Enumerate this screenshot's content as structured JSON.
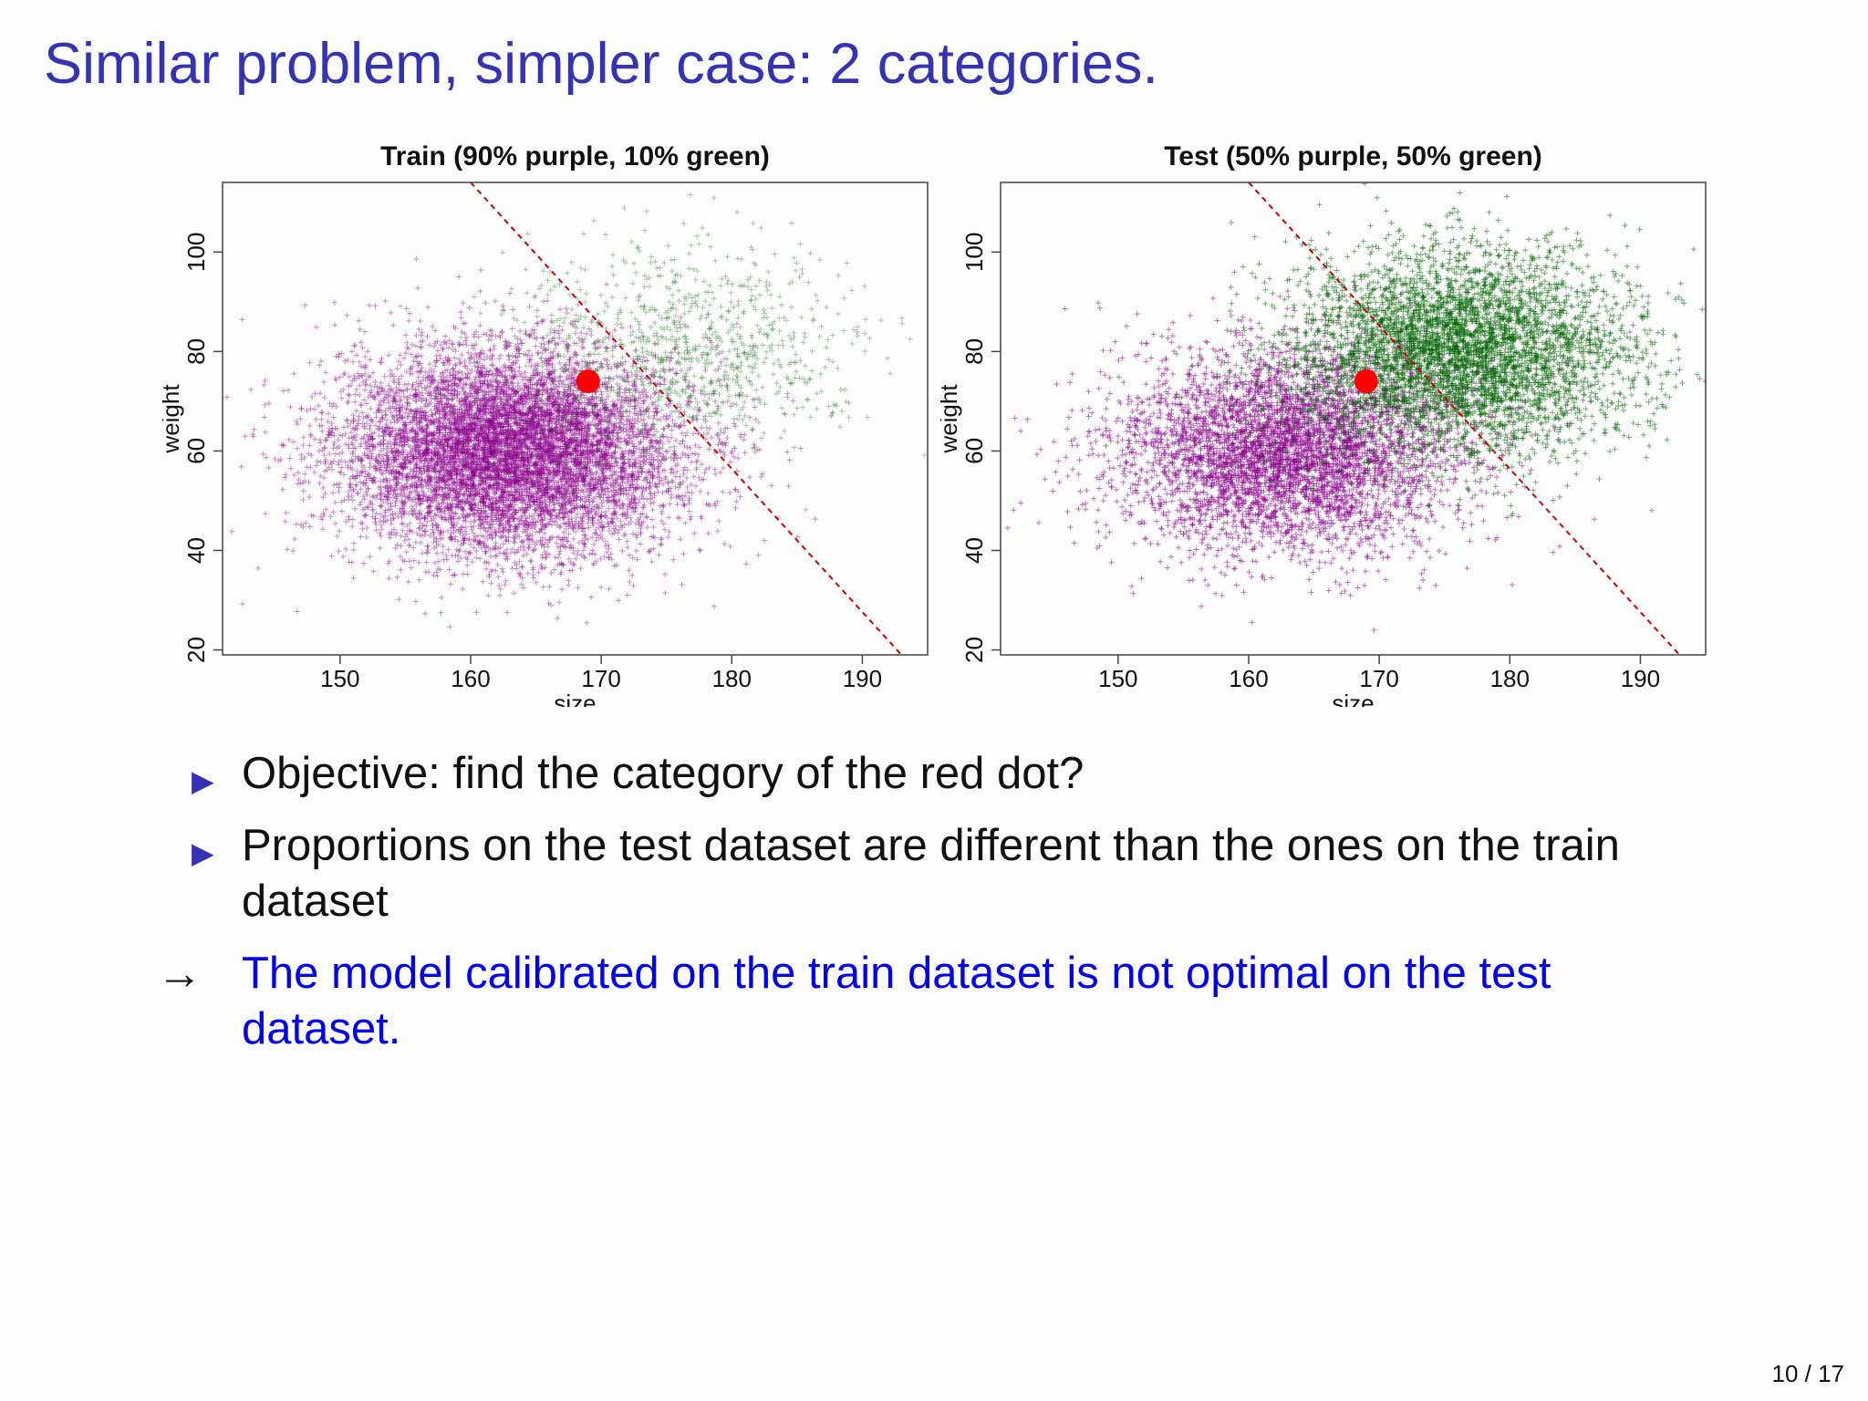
{
  "slide": {
    "title": "Similar problem, simpler case: 2 categories.",
    "page_number": "10 / 17"
  },
  "colors": {
    "title": "#3333b3",
    "purple": "#8b008b",
    "green": "#006400",
    "red_dot": "#ff0000",
    "boundary": "#cc0000",
    "conclusion": "#0000ee"
  },
  "bullets": [
    {
      "marker": "triangle-right-icon",
      "text": "Objective: find the category of the red dot?"
    },
    {
      "marker": "triangle-right-icon",
      "text": "Proportions on the test dataset are different than the ones on the train dataset"
    }
  ],
  "conclusion": {
    "marker": "right-arrow-icon",
    "text": "The model calibrated on the train dataset is not optimal on the test dataset."
  },
  "chart_data": [
    {
      "type": "scatter",
      "title": "Train (90% purple, 10% green)",
      "xlabel": "size",
      "ylabel": "weight",
      "xlim": [
        141,
        195
      ],
      "ylim": [
        19,
        114
      ],
      "xticks": [
        150,
        160,
        170,
        180,
        190
      ],
      "yticks": [
        20,
        40,
        60,
        80,
        100
      ],
      "grid": false,
      "series": [
        {
          "color": "purple",
          "marker": "+",
          "count": 9000,
          "mean": [
            163,
            60
          ],
          "sd": [
            6.5,
            10
          ]
        },
        {
          "color": "green",
          "marker": "+",
          "count": 1000,
          "mean": [
            176,
            80
          ],
          "sd": [
            6.5,
            10
          ]
        }
      ],
      "decision_boundary": {
        "style": "dashed",
        "color": "red",
        "x": [
          160,
          193
        ],
        "y": [
          114,
          19
        ]
      },
      "highlight_point": {
        "color": "red",
        "x": 169,
        "y": 74
      }
    },
    {
      "type": "scatter",
      "title": "Test (50% purple, 50% green)",
      "xlabel": "size",
      "ylabel": "weight",
      "xlim": [
        141,
        195
      ],
      "ylim": [
        19,
        114
      ],
      "xticks": [
        150,
        160,
        170,
        180,
        190
      ],
      "yticks": [
        20,
        40,
        60,
        80,
        100
      ],
      "grid": false,
      "series": [
        {
          "color": "purple",
          "marker": "+",
          "count": 5000,
          "mean": [
            163,
            60
          ],
          "sd": [
            6.5,
            10
          ]
        },
        {
          "color": "green",
          "marker": "+",
          "count": 5000,
          "mean": [
            176,
            80
          ],
          "sd": [
            6.5,
            10
          ]
        }
      ],
      "decision_boundary": {
        "style": "dashed",
        "color": "red",
        "x": [
          160,
          193
        ],
        "y": [
          114,
          19
        ]
      },
      "highlight_point": {
        "color": "red",
        "x": 169,
        "y": 74
      }
    }
  ]
}
